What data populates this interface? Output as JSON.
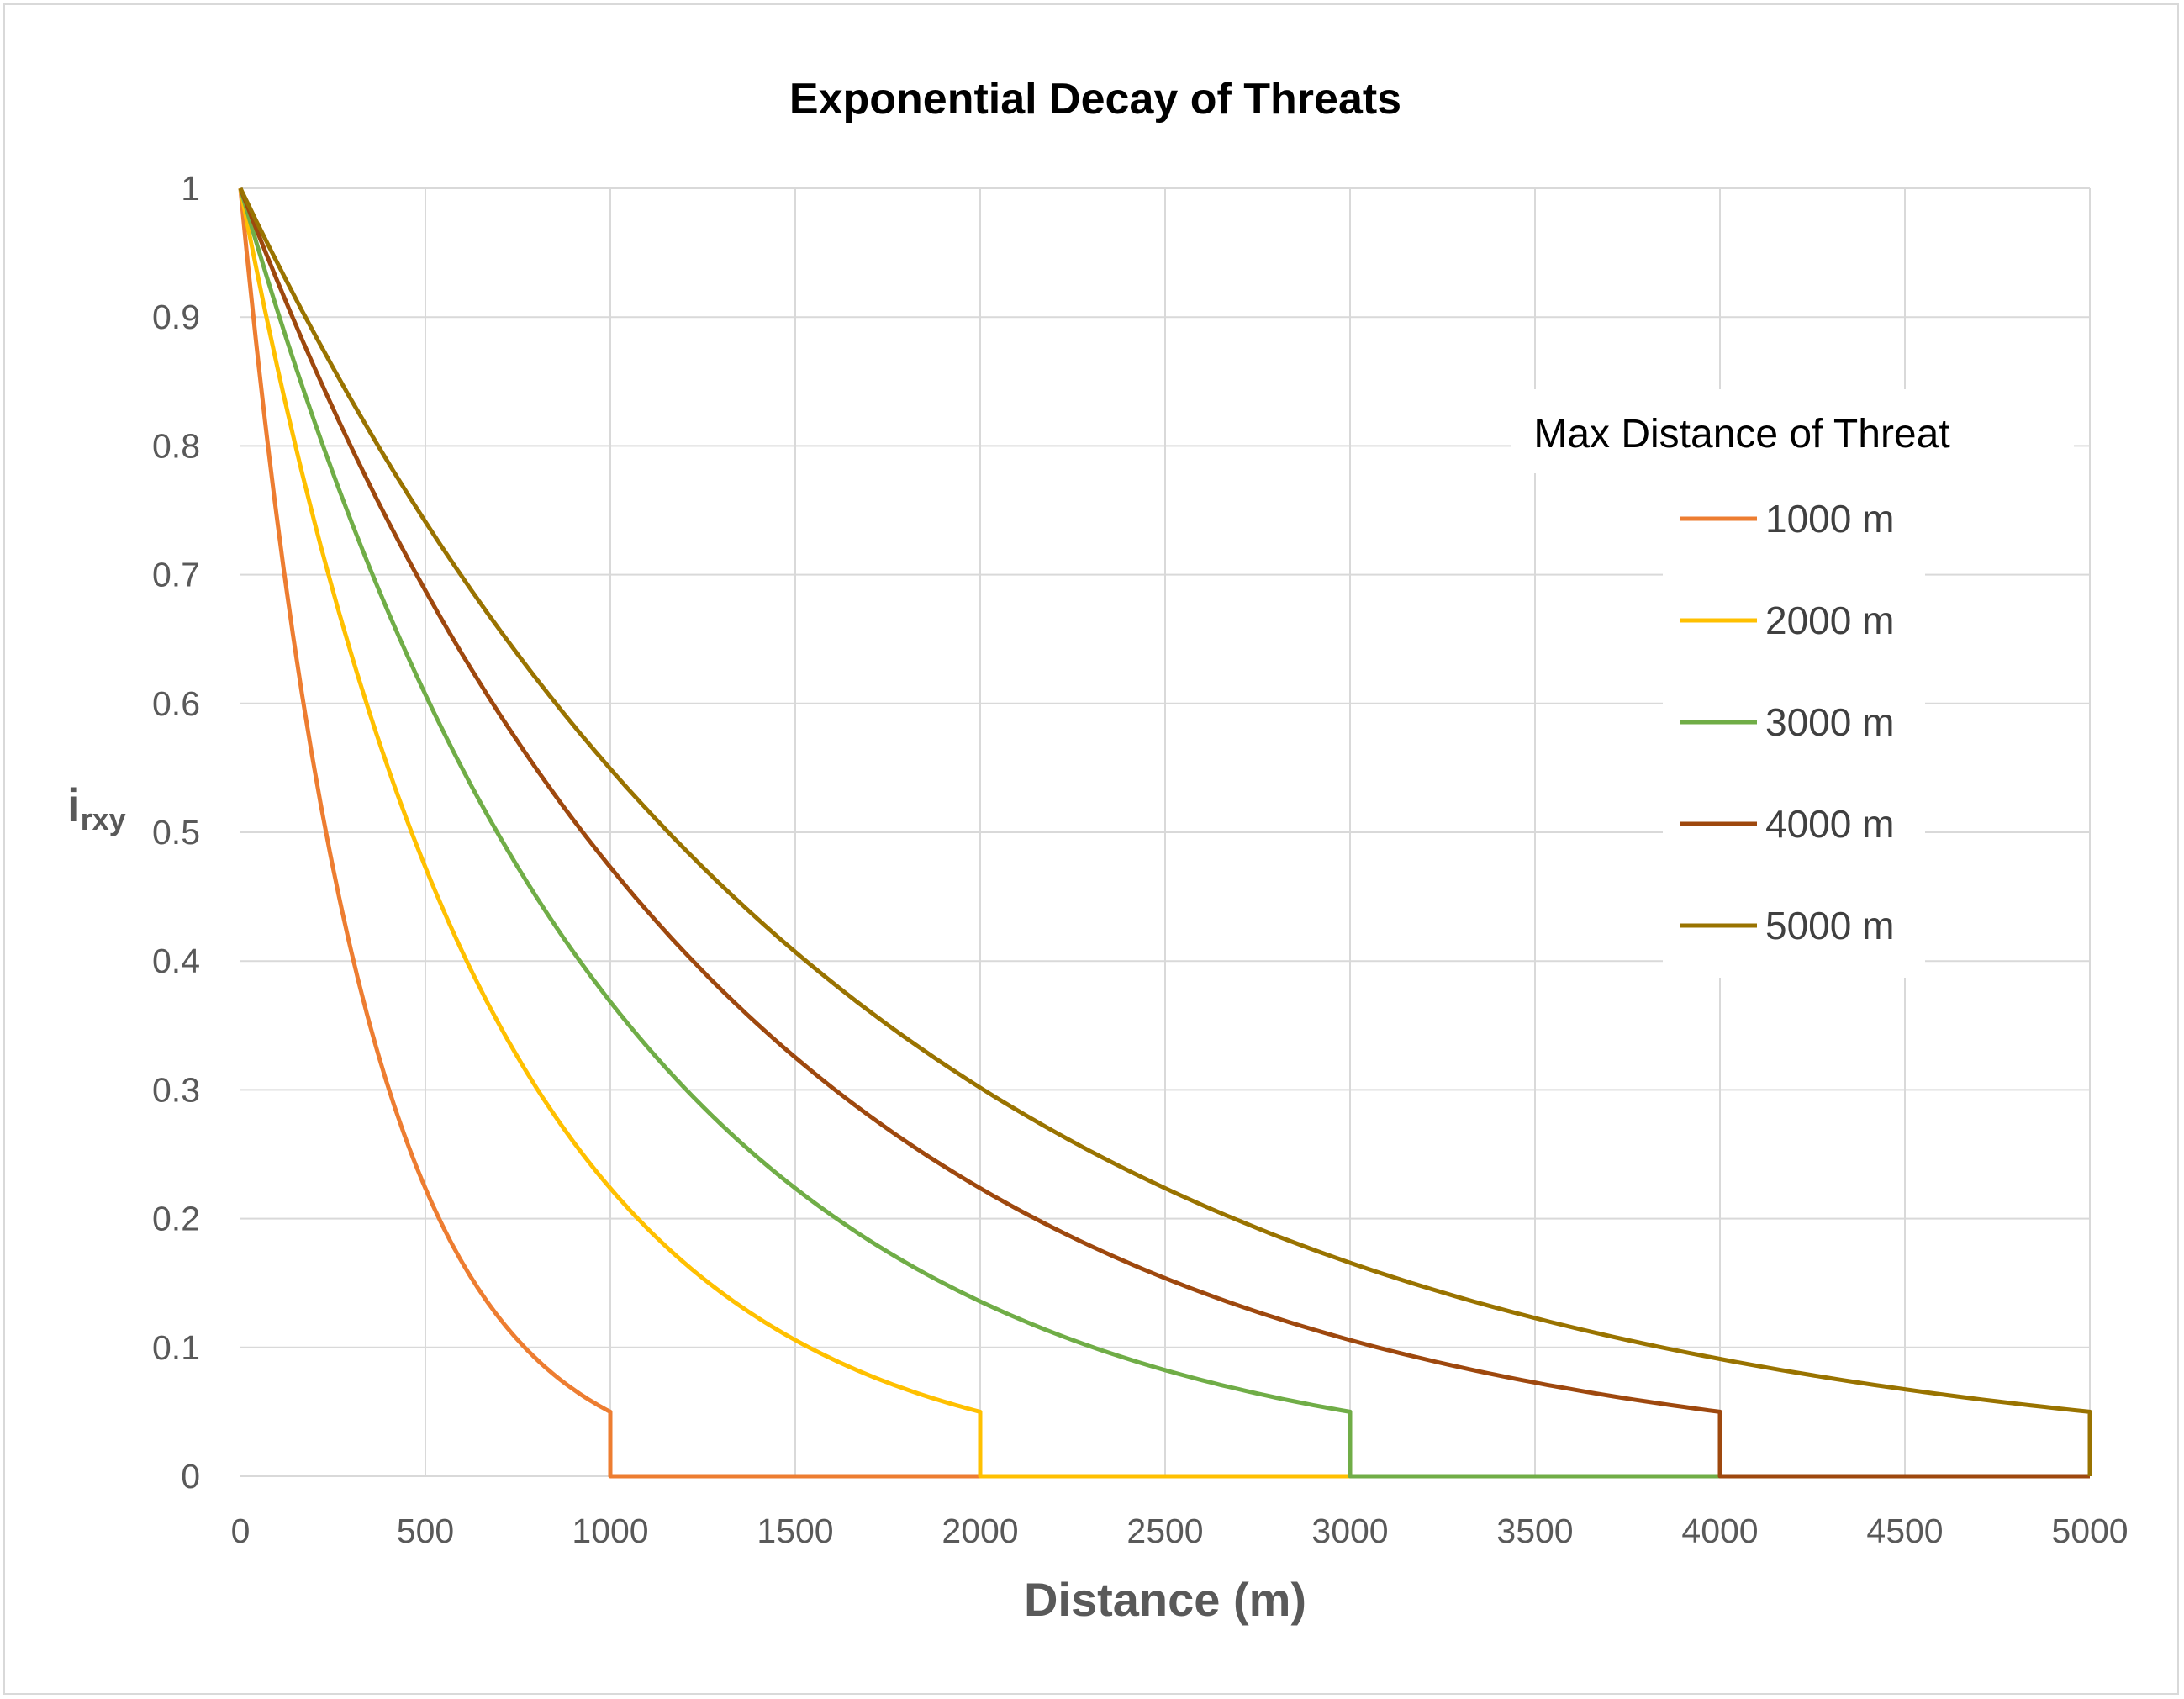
{
  "chart_data": {
    "type": "line",
    "title": "Exponential Decay of Threats",
    "xlabel": "Distance (m)",
    "ylabel": "irxy",
    "ylabel_main": "i",
    "ylabel_sub": "rxy",
    "xlim": [
      0,
      5000
    ],
    "ylim": [
      0,
      1
    ],
    "x_ticks": [
      "0",
      "500",
      "1000",
      "1500",
      "2000",
      "2500",
      "3000",
      "3500",
      "4000",
      "4500",
      "5000"
    ],
    "y_ticks": [
      "0",
      "0.1",
      "0.2",
      "0.3",
      "0.4",
      "0.5",
      "0.6",
      "0.7",
      "0.8",
      "0.9",
      "1"
    ],
    "x_tick_values": [
      0,
      500,
      1000,
      1500,
      2000,
      2500,
      3000,
      3500,
      4000,
      4500,
      5000
    ],
    "y_tick_values": [
      0,
      0.1,
      0.2,
      0.3,
      0.4,
      0.5,
      0.6,
      0.7,
      0.8,
      0.9,
      1
    ],
    "grid": true,
    "legend": {
      "title": "Max Distance of Threat",
      "placement": "right"
    },
    "series": [
      {
        "name": "1000 m",
        "max_distance": 1000,
        "end_value": 0.05,
        "color": "#ED7D31",
        "x": [
          0,
          100,
          200,
          300,
          400,
          500,
          600,
          700,
          800,
          900,
          1000,
          1000,
          5000
        ],
        "y": [
          1,
          0.741,
          0.549,
          0.407,
          0.302,
          0.224,
          0.166,
          0.123,
          0.091,
          0.067,
          0.05,
          0,
          0
        ]
      },
      {
        "name": "2000 m",
        "max_distance": 2000,
        "end_value": 0.05,
        "color": "#FFC000",
        "x": [
          0,
          200,
          400,
          600,
          800,
          1000,
          1200,
          1400,
          1600,
          1800,
          2000,
          2000,
          5000
        ],
        "y": [
          1,
          0.741,
          0.549,
          0.407,
          0.302,
          0.224,
          0.166,
          0.123,
          0.091,
          0.067,
          0.05,
          0,
          0
        ]
      },
      {
        "name": "3000 m",
        "max_distance": 3000,
        "end_value": 0.05,
        "color": "#70AD47",
        "x": [
          0,
          300,
          600,
          900,
          1200,
          1500,
          1800,
          2100,
          2400,
          2700,
          3000,
          3000,
          5000
        ],
        "y": [
          1,
          0.741,
          0.549,
          0.407,
          0.302,
          0.224,
          0.166,
          0.123,
          0.091,
          0.067,
          0.05,
          0,
          0
        ]
      },
      {
        "name": "4000 m",
        "max_distance": 4000,
        "end_value": 0.05,
        "color": "#9E480E",
        "x": [
          0,
          400,
          800,
          1200,
          1600,
          2000,
          2400,
          2800,
          3200,
          3600,
          4000,
          4000,
          5000
        ],
        "y": [
          1,
          0.741,
          0.549,
          0.407,
          0.302,
          0.224,
          0.166,
          0.123,
          0.091,
          0.067,
          0.05,
          0,
          0
        ]
      },
      {
        "name": "5000 m",
        "max_distance": 5000,
        "end_value": 0.05,
        "color": "#997300",
        "x": [
          0,
          500,
          1000,
          1500,
          2000,
          2500,
          3000,
          3500,
          4000,
          4500,
          5000,
          5000
        ],
        "y": [
          1,
          0.741,
          0.549,
          0.407,
          0.302,
          0.224,
          0.166,
          0.123,
          0.091,
          0.067,
          0.05,
          0
        ]
      }
    ]
  }
}
